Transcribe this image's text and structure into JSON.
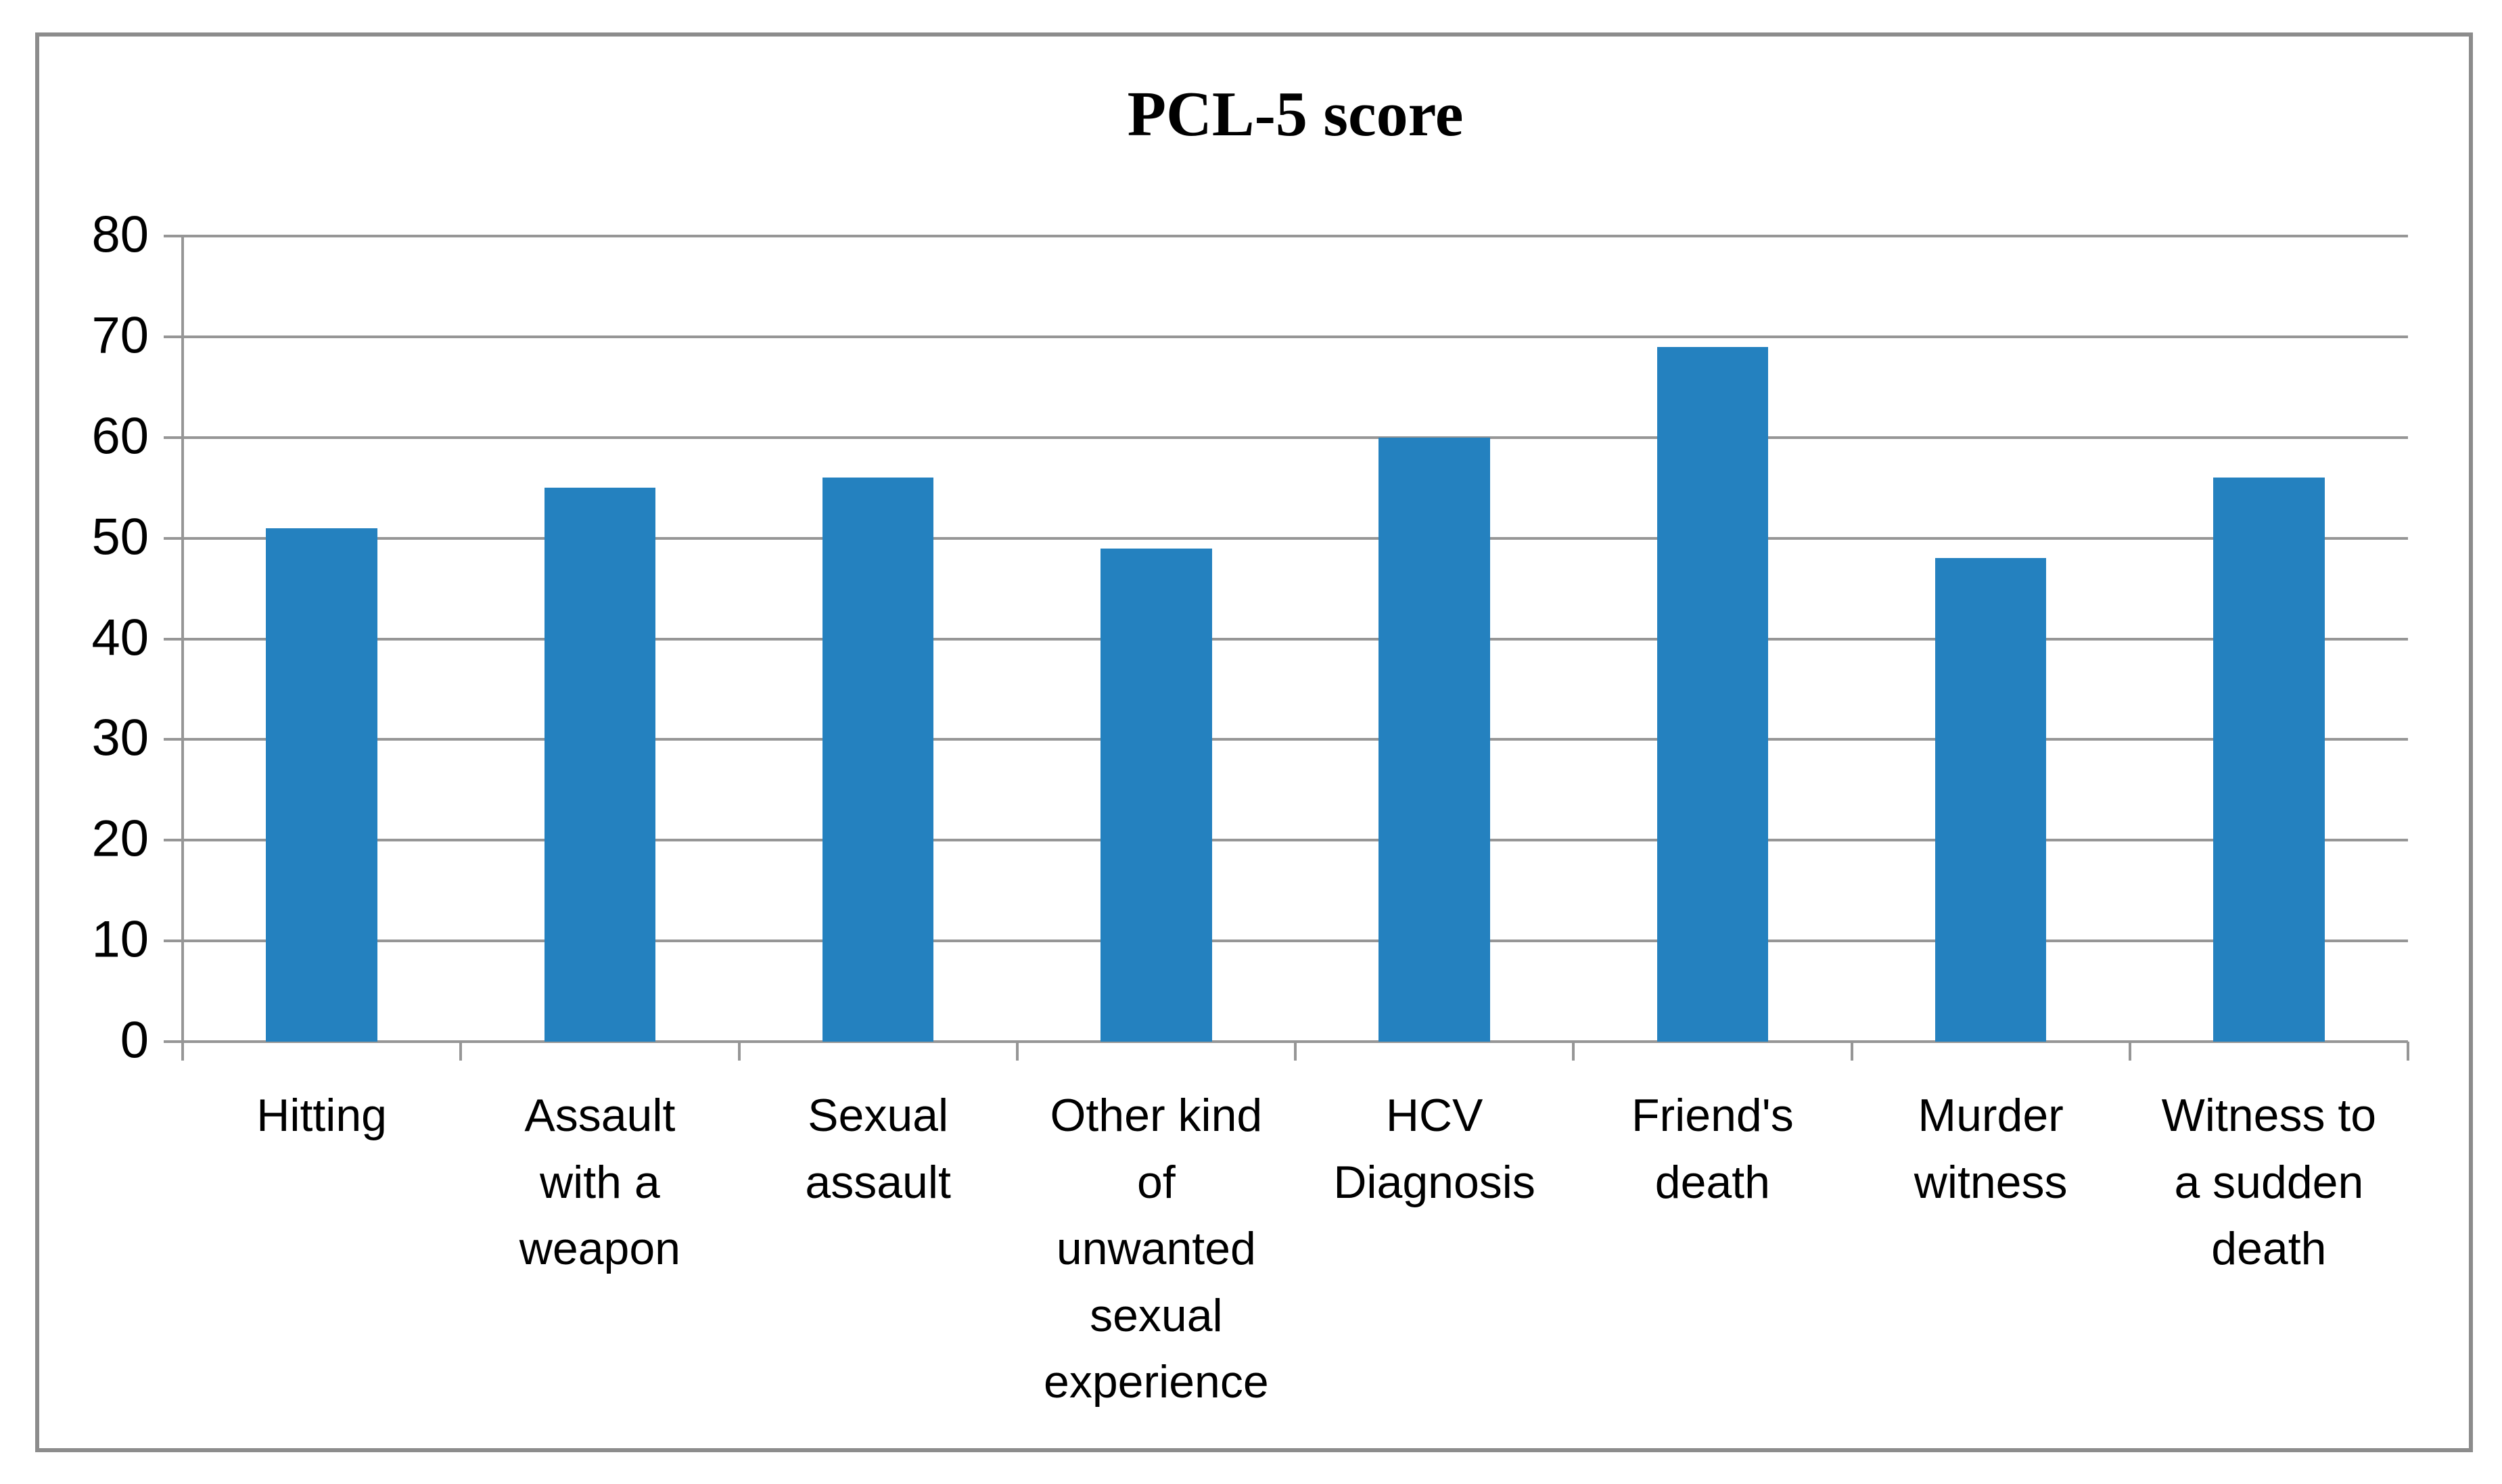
{
  "chart_data": {
    "type": "bar",
    "title": "PCL-5 score",
    "categories": [
      "Hitting",
      "Assault with a weapon",
      "Sexual assault",
      "Other kind of unwanted sexual experience",
      "HCV Diagnosis",
      "Friend's death",
      "Murder witness",
      "Witness to a sudden death"
    ],
    "category_label_lines": [
      [
        "Hitting"
      ],
      [
        "Assault",
        "with a",
        "weapon"
      ],
      [
        "Sexual",
        "assault"
      ],
      [
        "Other kind",
        "of",
        "unwanted",
        "sexual",
        "experience"
      ],
      [
        "HCV",
        "Diagnosis"
      ],
      [
        "Friend's",
        "death"
      ],
      [
        "Murder",
        "witness"
      ],
      [
        "Witness to",
        "a sudden",
        "death"
      ]
    ],
    "values": [
      51,
      55,
      56,
      49,
      60,
      69,
      48,
      56
    ],
    "xlabel": "",
    "ylabel": "",
    "ylim": [
      0,
      80
    ],
    "ytick_step": 10,
    "yticks": [
      80,
      70,
      60,
      50,
      40,
      30,
      20,
      10,
      0
    ],
    "grid": true,
    "legend": "none",
    "colors": {
      "bar": "#2481BF",
      "gridline": "#969696",
      "axis": "#969696",
      "frame": "#8C8C8C",
      "text": "#000000"
    }
  }
}
